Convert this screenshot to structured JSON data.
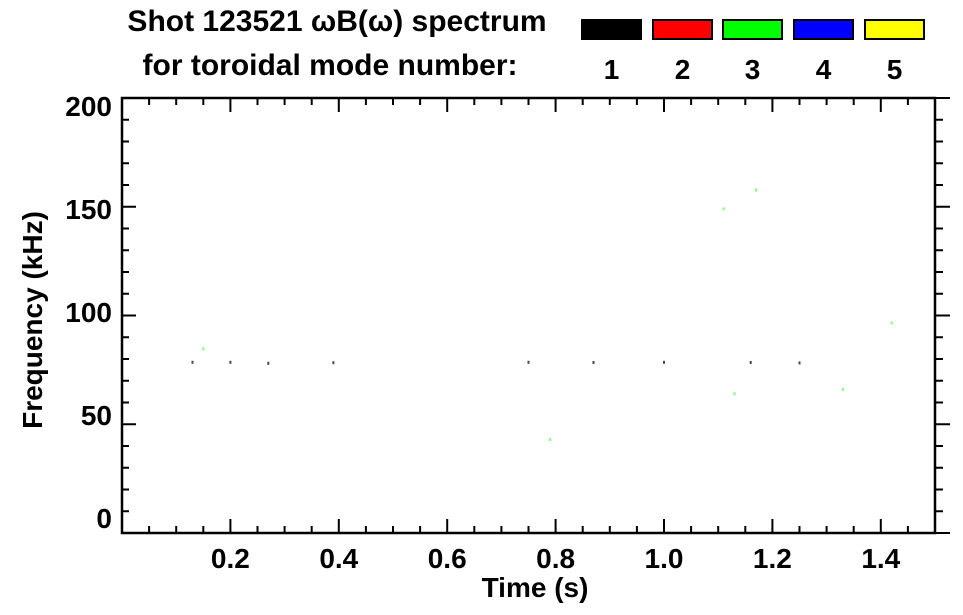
{
  "title": {
    "line1": "Shot 123521 ωB(ω) spectrum",
    "line2": "for toroidal mode number:"
  },
  "legend": {
    "modes": [
      {
        "label": "1",
        "color": "#000000"
      },
      {
        "label": "2",
        "color": "#ff0000"
      },
      {
        "label": "3",
        "color": "#00ff00"
      },
      {
        "label": "4",
        "color": "#0000ff"
      },
      {
        "label": "5",
        "color": "#ffff00"
      }
    ]
  },
  "axes": {
    "x": {
      "label": "Time (s)",
      "min": 0,
      "max": 1.5,
      "major_ticks": [
        {
          "value": 0.2,
          "label": "0.2"
        },
        {
          "value": 0.4,
          "label": "0.4"
        },
        {
          "value": 0.6,
          "label": "0.6"
        },
        {
          "value": 0.8,
          "label": "0.8"
        },
        {
          "value": 1.0,
          "label": "1.0"
        },
        {
          "value": 1.2,
          "label": "1.2"
        },
        {
          "value": 1.4,
          "label": "1.4"
        }
      ],
      "minor_step": 0.05
    },
    "y": {
      "label": "Frequency (kHz)",
      "min": 0,
      "max": 200,
      "major_ticks": [
        {
          "value": 0,
          "label": "0"
        },
        {
          "value": 50,
          "label": "50"
        },
        {
          "value": 100,
          "label": "100"
        },
        {
          "value": 150,
          "label": "150"
        },
        {
          "value": 200,
          "label": "200"
        }
      ],
      "minor_step": 10
    }
  },
  "chart_data": {
    "type": "scatter",
    "title": "Shot 123521 ωB(ω) spectrum for toroidal mode number: 1-5",
    "xlabel": "Time (s)",
    "ylabel": "Frequency (kHz)",
    "xlim": [
      0,
      1.5
    ],
    "ylim": [
      0,
      200
    ],
    "grid": false,
    "legend_position": "top",
    "note": "Plot area is nearly empty; only tiny faint specks are visible, mostly along ~78 kHz, plus scattered faint green (n=3) specks.",
    "series": [
      {
        "name": "n=1",
        "color": "#000000",
        "points": [
          [
            0.13,
            78.5
          ],
          [
            0.2,
            78.5
          ],
          [
            0.27,
            78.0
          ],
          [
            0.39,
            78.3
          ],
          [
            0.75,
            78.5
          ],
          [
            0.87,
            78.4
          ],
          [
            1.0,
            78.5
          ],
          [
            1.16,
            78.4
          ],
          [
            1.25,
            78.2
          ]
        ]
      },
      {
        "name": "n=2",
        "color": "#ff0000",
        "points": []
      },
      {
        "name": "n=3",
        "color": "#00ff00",
        "points": [
          [
            0.15,
            84.7
          ],
          [
            0.79,
            43.0
          ],
          [
            1.11,
            149.0
          ],
          [
            1.13,
            64.0
          ],
          [
            1.17,
            157.7
          ],
          [
            1.33,
            66.0
          ],
          [
            1.42,
            96.5
          ]
        ]
      },
      {
        "name": "n=4",
        "color": "#0000ff",
        "points": []
      },
      {
        "name": "n=5",
        "color": "#ffff00",
        "points": []
      }
    ]
  }
}
